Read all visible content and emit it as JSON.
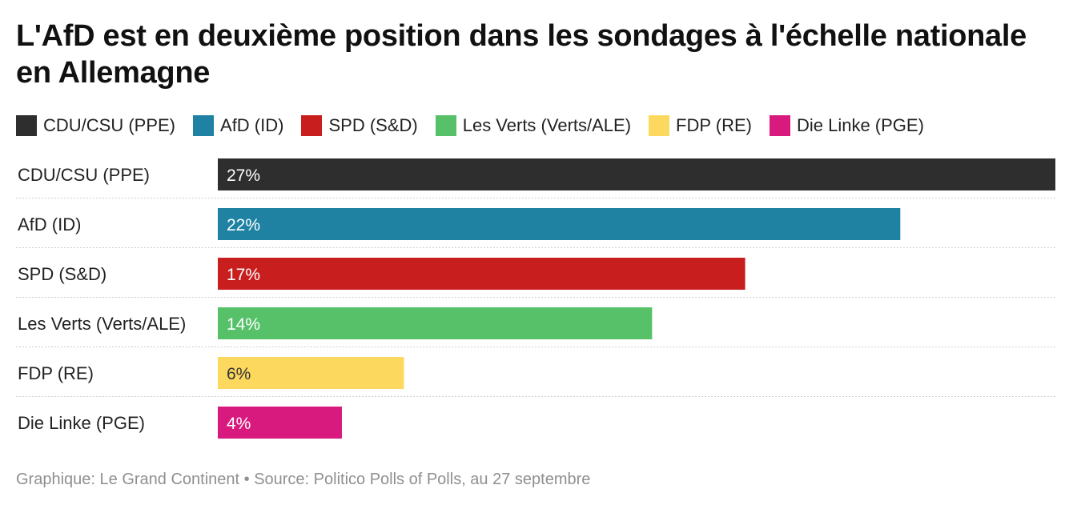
{
  "title": "L'AfD est en deuxième position dans les sondages à l'échelle nationale en Allemagne",
  "source": "Graphique: Le Grand Continent • Source: Politico Polls of Polls, au 27 septembre",
  "chart_data": {
    "type": "bar",
    "orientation": "horizontal",
    "title": "L'AfD est en deuxième position dans les sondages à l'échelle nationale en Allemagne",
    "categories": [
      "CDU/CSU (PPE)",
      "AfD (ID)",
      "SPD (S&D)",
      "Les Verts (Verts/ALE)",
      "FDP (RE)",
      "Die Linke (PGE)"
    ],
    "values": [
      27,
      22,
      17,
      14,
      6,
      4
    ],
    "value_labels": [
      "27%",
      "22%",
      "17%",
      "14%",
      "6%",
      "4%"
    ],
    "colors": [
      "#2e2e2e",
      "#1f82a3",
      "#c91e1e",
      "#57c16a",
      "#fcd85f",
      "#d81a7f"
    ],
    "label_colors": [
      "#ffffff",
      "#ffffff",
      "#ffffff",
      "#ffffff",
      "#333333",
      "#ffffff"
    ],
    "legend": [
      "CDU/CSU (PPE)",
      "AfD (ID)",
      "SPD (S&D)",
      "Les Verts (Verts/ALE)",
      "FDP (RE)",
      "Die Linke (PGE)"
    ],
    "legend_position": "top-left",
    "xlim": [
      0,
      27
    ],
    "grid": false,
    "row_separators": "dotted"
  }
}
